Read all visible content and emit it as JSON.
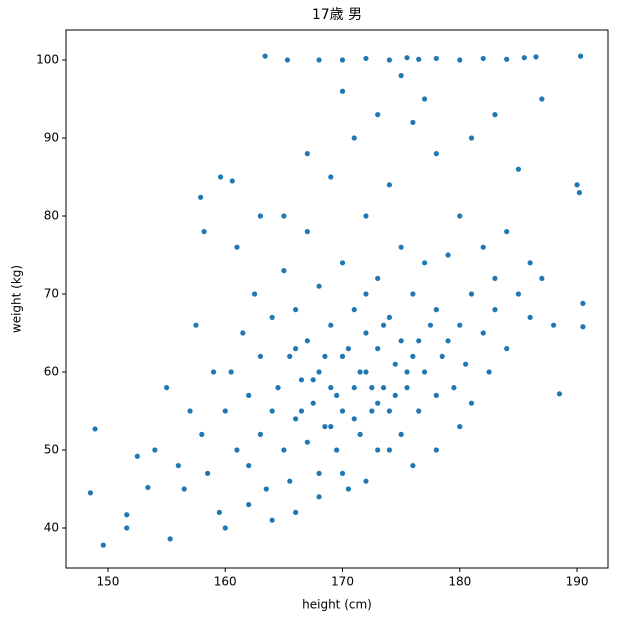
{
  "chart_data": {
    "type": "scatter",
    "title": "17歳 男",
    "x_label": "height (cm)",
    "y_label": "weight (kg)",
    "color": "#1f77b4",
    "x": [
      148.5,
      148.9,
      149.6,
      151.6,
      151.6,
      152.5,
      153.4,
      155.3,
      157.9,
      158.2,
      159.6,
      160.6,
      163.4,
      165.3,
      190.3,
      190,
      190.2,
      190.5,
      190.5,
      188.5,
      188,
      187,
      186.5,
      185.5,
      160,
      160.5,
      161,
      161.5,
      162,
      162,
      162.5,
      163,
      163,
      163.5,
      164,
      164,
      164.5,
      165,
      165,
      165.5,
      165.5,
      166,
      166,
      166.5,
      167,
      167,
      167,
      167.5,
      168,
      168,
      168,
      168.5,
      169,
      169,
      169,
      169.5,
      170,
      170,
      170,
      170.5,
      171,
      171,
      171,
      171.5,
      172,
      172,
      172,
      172.5,
      173,
      173,
      173,
      173.5,
      174,
      174,
      174,
      174.5,
      175,
      175,
      175,
      175.5,
      176,
      176,
      176,
      176.5,
      177,
      177,
      177.5,
      178,
      178,
      178,
      178.5,
      179,
      179,
      179.5,
      180,
      180,
      180.5,
      181,
      181,
      182,
      182,
      182.5,
      183,
      183,
      184,
      184,
      185,
      185,
      186,
      186,
      187,
      158,
      158.5,
      159,
      159.5,
      157,
      156,
      155,
      154,
      157.5,
      156.5,
      160,
      162,
      164,
      166,
      168,
      170,
      172,
      174,
      176,
      178,
      180,
      165,
      167,
      170,
      173,
      175,
      177,
      181,
      183,
      163,
      161,
      168,
      170,
      172,
      174,
      175.5,
      176.5,
      178,
      180,
      182,
      184,
      169.5,
      170.5,
      171.5,
      172.5,
      173.5,
      168.5,
      167.5,
      166.5,
      174.5,
      175.5,
      176.5,
      171,
      173,
      169,
      172,
      166
    ],
    "values": [
      44.5,
      52.7,
      37.8,
      41.7,
      40,
      49.2,
      45.2,
      38.6,
      82.4,
      78,
      85,
      84.5,
      100.5,
      100,
      100.5,
      84,
      83,
      68.8,
      65.8,
      57.2,
      66,
      95,
      100.4,
      100.3,
      55,
      60,
      50,
      65,
      48,
      57,
      70,
      52,
      62,
      45,
      55,
      67,
      58,
      50,
      73,
      62,
      46,
      54,
      68,
      59,
      51,
      64,
      78,
      56,
      47,
      60,
      71,
      53,
      58,
      66,
      85,
      50,
      55,
      62,
      74,
      45,
      58,
      68,
      90,
      52,
      60,
      65,
      80,
      55,
      50,
      63,
      72,
      58,
      55,
      67,
      84,
      61,
      52,
      64,
      76,
      58,
      62,
      70,
      92,
      55,
      60,
      74,
      66,
      57,
      68,
      88,
      62,
      64,
      75,
      58,
      66,
      80,
      61,
      70,
      56,
      65,
      76,
      60,
      72,
      68,
      63,
      78,
      70,
      86,
      67,
      74,
      72,
      52,
      47,
      60,
      42,
      55,
      48,
      58,
      50,
      66,
      45,
      40,
      43,
      41,
      42,
      44,
      47,
      46,
      50,
      48,
      50,
      53,
      80,
      88,
      96,
      93,
      98,
      95,
      90,
      93,
      80,
      76,
      100,
      100,
      100.2,
      100,
      100.3,
      100.1,
      100.2,
      100,
      100.2,
      100.1,
      57,
      63,
      60,
      58,
      66,
      62,
      59,
      55,
      57,
      60,
      64,
      54,
      56,
      53,
      70,
      63
    ],
    "xlim": [
      146.42,
      192.64
    ],
    "ylim": [
      34.87,
      103.85
    ],
    "xticks": [
      150,
      160,
      170,
      180,
      190
    ],
    "yticks": [
      40,
      50,
      60,
      70,
      80,
      90,
      100
    ]
  }
}
